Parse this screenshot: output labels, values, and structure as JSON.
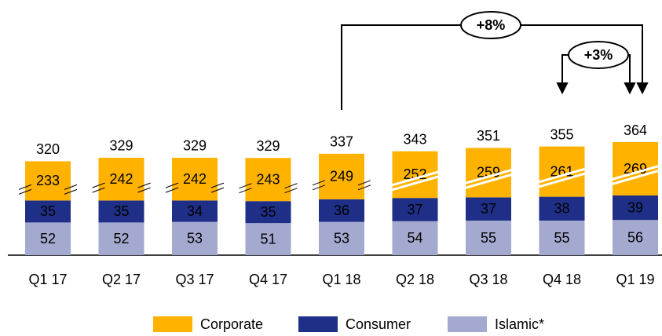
{
  "chart_data": {
    "type": "bar",
    "stacked": true,
    "categories": [
      "Q1 17",
      "Q2 17",
      "Q3 17",
      "Q4 17",
      "Q1 18",
      "Q2 18",
      "Q3 18",
      "Q4 18",
      "Q1 19"
    ],
    "series": [
      {
        "name": "Corporate",
        "color": "#FFB300",
        "values": [
          233,
          242,
          242,
          243,
          249,
          252,
          259,
          261,
          269
        ]
      },
      {
        "name": "Consumer",
        "color": "#1F2F87",
        "values": [
          35,
          35,
          34,
          35,
          36,
          37,
          37,
          38,
          39
        ]
      },
      {
        "name": "Islamic*",
        "color": "#A4A9CF",
        "values": [
          52,
          52,
          53,
          51,
          53,
          54,
          55,
          55,
          56
        ]
      }
    ],
    "totals": [
      320,
      329,
      329,
      329,
      337,
      343,
      351,
      355,
      364
    ],
    "annotations": [
      "+8%",
      "+3%"
    ]
  }
}
